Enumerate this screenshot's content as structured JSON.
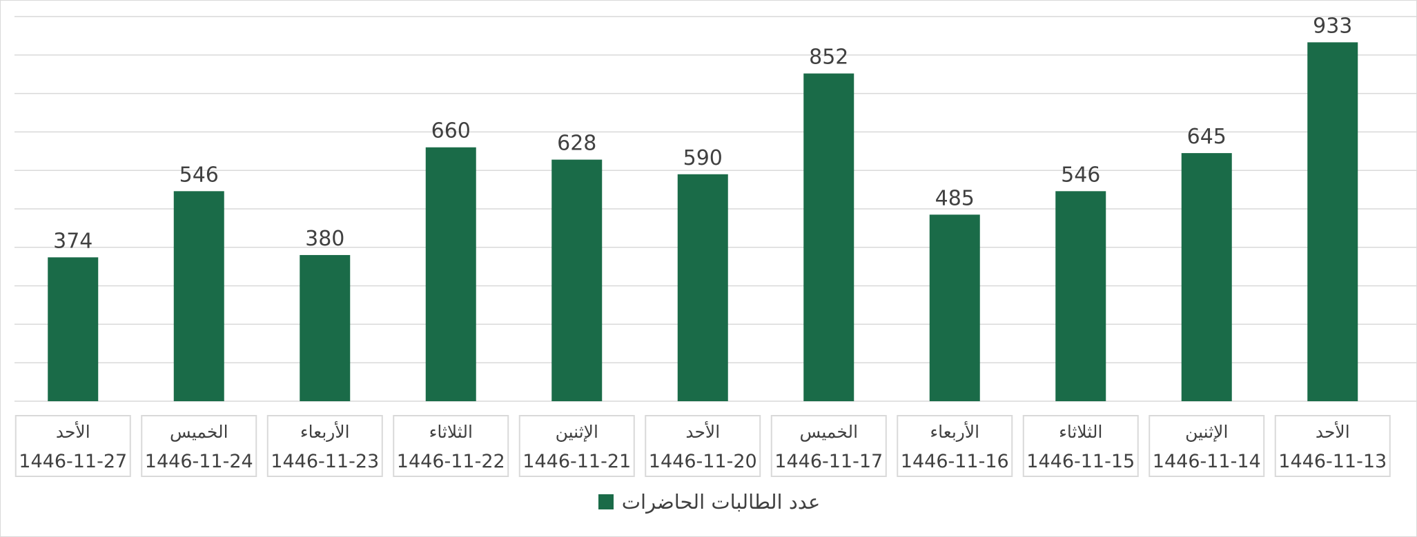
{
  "chart_data": {
    "type": "bar",
    "title": "",
    "xlabel": "",
    "ylabel": "",
    "ylim": [
      0,
      1000
    ],
    "grid": true,
    "legend_position": "bottom",
    "categories": [
      {
        "day": "الأحد",
        "date": "1446-11-13"
      },
      {
        "day": "الإثنين",
        "date": "1446-11-14"
      },
      {
        "day": "الثلاثاء",
        "date": "1446-11-15"
      },
      {
        "day": "الأربعاء",
        "date": "1446-11-16"
      },
      {
        "day": "الخميس",
        "date": "1446-11-17"
      },
      {
        "day": "الأحد",
        "date": "1446-11-20"
      },
      {
        "day": "الإثنين",
        "date": "1446-11-21"
      },
      {
        "day": "الثلاثاء",
        "date": "1446-11-22"
      },
      {
        "day": "الأربعاء",
        "date": "1446-11-23"
      },
      {
        "day": "الخميس",
        "date": "1446-11-24"
      },
      {
        "day": "الأحد",
        "date": "1446-11-27"
      }
    ],
    "series": [
      {
        "name": "عدد الطالبات الحاضرات",
        "color": "#1a6b48",
        "values": [
          933,
          645,
          546,
          485,
          852,
          590,
          628,
          660,
          380,
          546,
          374
        ]
      }
    ]
  }
}
